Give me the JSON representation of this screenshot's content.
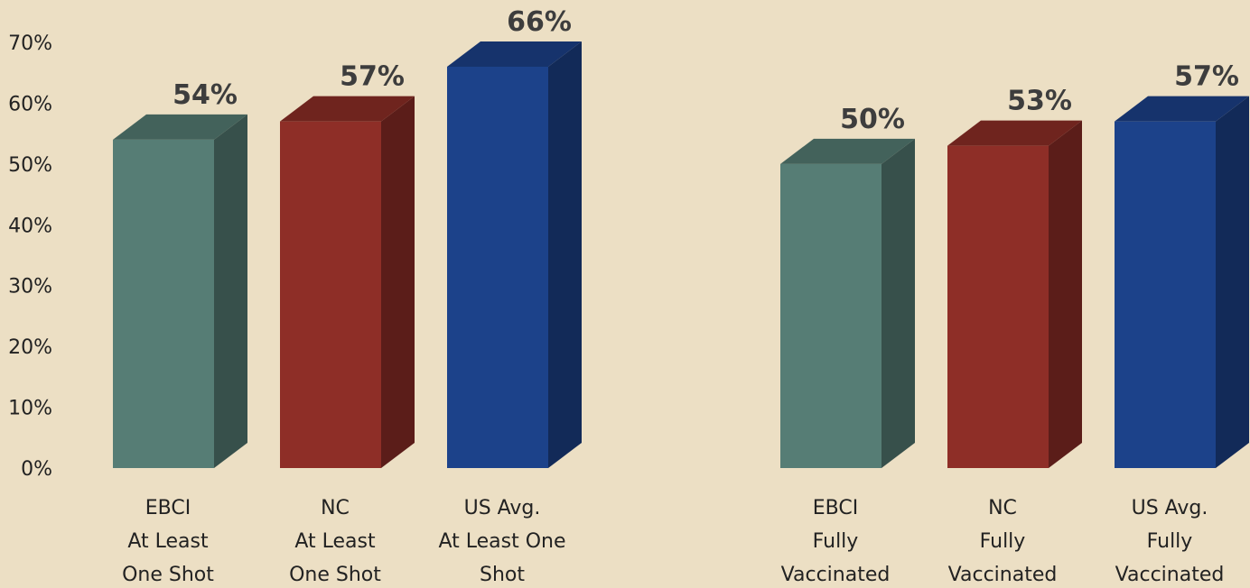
{
  "chart_data": {
    "type": "bar",
    "title": "",
    "xlabel": "",
    "ylabel": "",
    "ylim": [
      0,
      0.7
    ],
    "y_ticks": [
      "0%",
      "10%",
      "20%",
      "30%",
      "40%",
      "50%",
      "60%",
      "70%"
    ],
    "grid": false,
    "legend": "none",
    "style": "3d-columns",
    "groups": [
      {
        "bars": [
          {
            "category_lines": [
              "EBCI",
              "At Least",
              "One Shot"
            ],
            "value": 0.54,
            "value_label": "54%",
            "color": "#567d75"
          },
          {
            "category_lines": [
              "NC",
              "At Least",
              "One Shot"
            ],
            "value": 0.57,
            "value_label": "57%",
            "color": "#8e2e27"
          },
          {
            "category_lines": [
              "US Avg.",
              "At Least One",
              "Shot"
            ],
            "value": 0.66,
            "value_label": "66%",
            "color": "#1c428a"
          }
        ]
      },
      {
        "bars": [
          {
            "category_lines": [
              "EBCI",
              "Fully",
              "Vaccinated"
            ],
            "value": 0.5,
            "value_label": "50%",
            "color": "#567d75"
          },
          {
            "category_lines": [
              "NC",
              "Fully",
              "Vaccinated"
            ],
            "value": 0.53,
            "value_label": "53%",
            "color": "#8e2e27"
          },
          {
            "category_lines": [
              "US Avg.",
              "Fully",
              "Vaccinated"
            ],
            "value": 0.57,
            "value_label": "57%",
            "color": "#1c428a"
          }
        ]
      }
    ],
    "colors": {
      "background": "#ecdfc4",
      "text": "#222222",
      "value_text": "#3d3d3d"
    }
  }
}
